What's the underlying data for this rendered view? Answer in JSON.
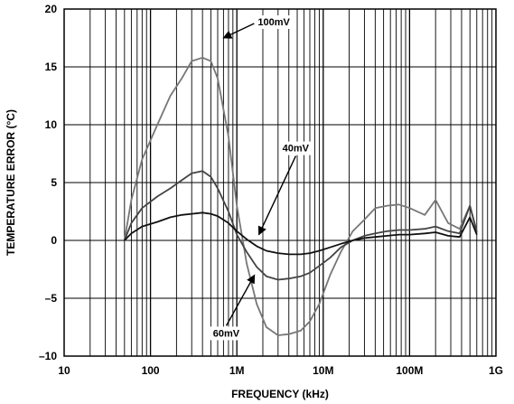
{
  "chart_data": {
    "type": "line",
    "title": "",
    "xlabel": "FREQUENCY (kHz)",
    "ylabel": "TEMPERATURE ERROR (°C)",
    "xscale": "log",
    "xlim": [
      10,
      1000000
    ],
    "ylim": [
      -10,
      20
    ],
    "grid": true,
    "x_ticks": [
      {
        "value": 10,
        "label": "10"
      },
      {
        "value": 100,
        "label": "100"
      },
      {
        "value": 1000,
        "label": "1M"
      },
      {
        "value": 10000,
        "label": "10M"
      },
      {
        "value": 100000,
        "label": "100M"
      },
      {
        "value": 1000000,
        "label": "1G"
      }
    ],
    "y_ticks": [
      {
        "value": -10,
        "label": "–10"
      },
      {
        "value": -5,
        "label": "–5"
      },
      {
        "value": 0,
        "label": "0"
      },
      {
        "value": 5,
        "label": "5"
      },
      {
        "value": 10,
        "label": "10"
      },
      {
        "value": 15,
        "label": "15"
      },
      {
        "value": 20,
        "label": "20"
      }
    ],
    "series": [
      {
        "name": "100mV",
        "color": "#777777",
        "x": [
          50,
          60,
          80,
          120,
          170,
          230,
          300,
          400,
          500,
          600,
          800,
          1000,
          1300,
          1700,
          2200,
          3000,
          4000,
          5500,
          7000,
          9000,
          12000,
          16000,
          22000,
          30000,
          40000,
          55000,
          75000,
          100000,
          150000,
          200000,
          280000,
          380000,
          500000,
          600000
        ],
        "y": [
          0,
          3.5,
          7,
          10,
          12.5,
          14,
          15.5,
          15.8,
          15.5,
          14,
          9,
          3,
          -2,
          -5.5,
          -7.5,
          -8.2,
          -8.1,
          -7.8,
          -7,
          -5.5,
          -3,
          -1,
          0.8,
          1.8,
          2.8,
          3,
          3.1,
          2.8,
          2.2,
          3.5,
          1.5,
          1,
          3,
          0.8
        ]
      },
      {
        "name": "60mV",
        "color": "#444444",
        "x": [
          50,
          60,
          80,
          120,
          170,
          230,
          300,
          400,
          500,
          600,
          800,
          1000,
          1300,
          1700,
          2200,
          3000,
          4000,
          5500,
          7000,
          9000,
          12000,
          16000,
          22000,
          30000,
          40000,
          55000,
          75000,
          100000,
          150000,
          200000,
          280000,
          380000,
          500000,
          600000
        ],
        "y": [
          0,
          1.5,
          2.8,
          3.8,
          4.5,
          5.2,
          5.8,
          6,
          5.5,
          4.5,
          2.5,
          0.5,
          -1,
          -2.3,
          -3.1,
          -3.4,
          -3.3,
          -3.1,
          -2.8,
          -2.2,
          -1.5,
          -0.6,
          0,
          0.4,
          0.6,
          0.8,
          0.9,
          0.9,
          1,
          1.2,
          0.8,
          0.6,
          3,
          0.7
        ]
      },
      {
        "name": "40mV",
        "color": "#111111",
        "x": [
          50,
          60,
          80,
          120,
          170,
          230,
          300,
          400,
          500,
          600,
          800,
          1000,
          1300,
          1700,
          2200,
          3000,
          4000,
          5500,
          7000,
          9000,
          12000,
          16000,
          22000,
          30000,
          40000,
          55000,
          75000,
          100000,
          150000,
          200000,
          280000,
          380000,
          500000,
          600000
        ],
        "y": [
          0,
          0.6,
          1.2,
          1.6,
          2,
          2.2,
          2.3,
          2.4,
          2.3,
          2.1,
          1.5,
          0.8,
          0.1,
          -0.5,
          -0.9,
          -1.1,
          -1.2,
          -1.2,
          -1.1,
          -0.9,
          -0.6,
          -0.3,
          0,
          0.2,
          0.3,
          0.4,
          0.5,
          0.5,
          0.6,
          0.7,
          0.4,
          0.3,
          2,
          0.5
        ]
      }
    ],
    "annotations": [
      {
        "text": "100mV",
        "at": [
          700,
          17.5
        ]
      },
      {
        "text": "40mV",
        "at": [
          1800,
          0.5
        ]
      },
      {
        "text": "60mV",
        "at": [
          1600,
          -3
        ]
      }
    ]
  }
}
